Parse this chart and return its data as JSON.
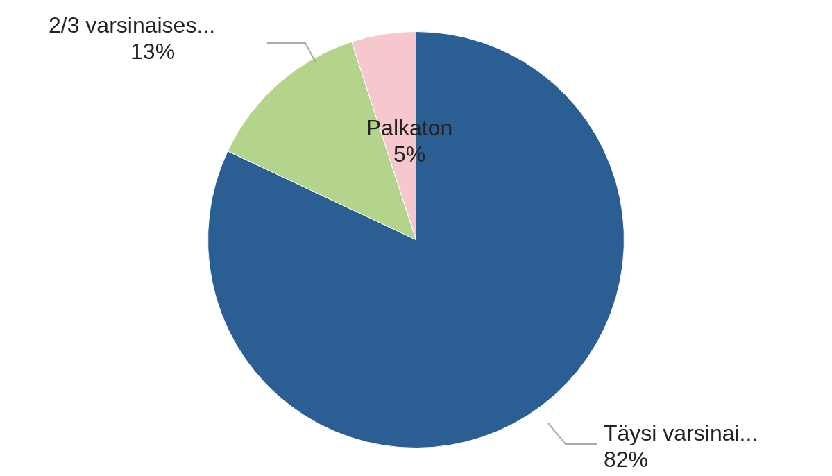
{
  "chart_data": {
    "type": "pie",
    "categories": [
      "Täysi varsinai...",
      "2/3 varsinaises...",
      "Palkaton"
    ],
    "values": [
      82,
      13,
      5
    ],
    "colors": [
      "#2b5f94",
      "#b4d48b",
      "#f6c7cc"
    ],
    "value_labels": [
      "82%",
      "13%",
      "5%"
    ],
    "legend": false
  }
}
